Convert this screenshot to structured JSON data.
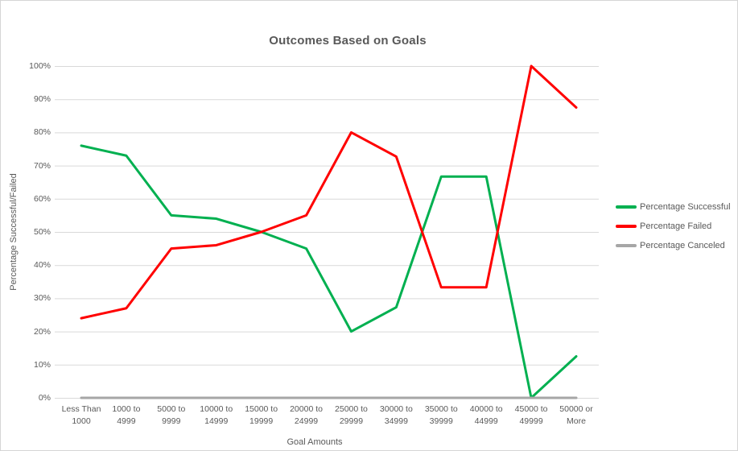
{
  "page": {
    "background_color": "#FFFFFF",
    "border_color": "#D5D5D5",
    "text_color": "#595959"
  },
  "chart_data": {
    "type": "line",
    "title": "Outcomes Based on Goals",
    "xlabel": "Goal Amounts",
    "ylabel": "Percentage Successful/Failed",
    "ylim": [
      0,
      100
    ],
    "grid": true,
    "gridline_color": "#D9D9D9",
    "legend_position": "right",
    "categories": [
      "Less Than 1000",
      "1000 to 4999",
      "5000 to 9999",
      "10000 to 14999",
      "15000 to 19999",
      "20000 to 24999",
      "25000 to 29999",
      "30000 to 34999",
      "35000 to 39999",
      "40000 to 44999",
      "45000 to 49999",
      "50000 or More"
    ],
    "y_ticks": [
      {
        "value": 0,
        "label": "0%"
      },
      {
        "value": 10,
        "label": "10%"
      },
      {
        "value": 20,
        "label": "20%"
      },
      {
        "value": 30,
        "label": "30%"
      },
      {
        "value": 40,
        "label": "40%"
      },
      {
        "value": 50,
        "label": "50%"
      },
      {
        "value": 60,
        "label": "60%"
      },
      {
        "value": 70,
        "label": "70%"
      },
      {
        "value": 80,
        "label": "80%"
      },
      {
        "value": 90,
        "label": "90%"
      },
      {
        "value": 100,
        "label": "100%"
      }
    ],
    "series": [
      {
        "name": "Percentage Successful",
        "color": "#00B050",
        "values": [
          76,
          73,
          55,
          54,
          50,
          45,
          20,
          27.3,
          66.7,
          66.7,
          0,
          12.5
        ]
      },
      {
        "name": "Percentage Failed",
        "color": "#FF0000",
        "values": [
          24,
          27,
          45,
          46,
          50,
          55,
          80,
          72.7,
          33.3,
          33.3,
          100,
          87.5
        ]
      },
      {
        "name": "Percentage Canceled",
        "color": "#A6A6A6",
        "values": [
          0,
          0,
          0,
          0,
          0,
          0,
          0,
          0,
          0,
          0,
          0,
          0
        ]
      }
    ]
  }
}
